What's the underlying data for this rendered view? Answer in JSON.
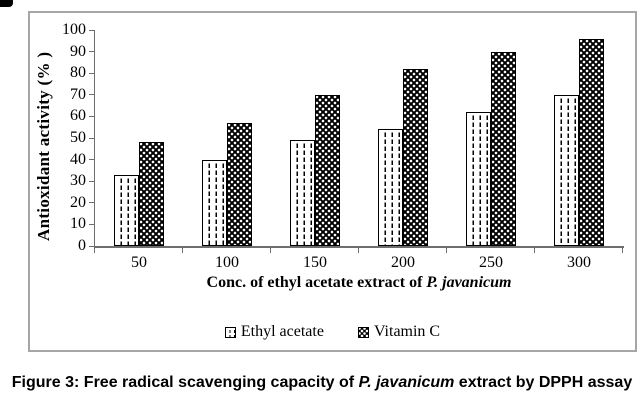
{
  "figure": {
    "caption_prefix": "Figure 3: Free radical scavenging capacity of ",
    "caption_italic": "P. javanicum",
    "caption_suffix": " extract by DPPH assay"
  },
  "chart_data": {
    "type": "bar",
    "title": "",
    "categories": [
      "50",
      "100",
      "150",
      "200",
      "250",
      "300"
    ],
    "series": [
      {
        "name": "Ethyl acetate",
        "values": [
          33,
          40,
          49,
          54,
          62,
          70
        ],
        "pattern": "dashed-vertical-lines-on-white"
      },
      {
        "name": "Vitamin C",
        "values": [
          48,
          57,
          70,
          82,
          90,
          96
        ],
        "pattern": "white-dots-on-black"
      }
    ],
    "xlabel_prefix": "Conc. of ethyl acetate extract of ",
    "xlabel_italic": "P. javanicum",
    "ylabel": "Antioxidant activity (% )",
    "ylim": [
      0,
      100
    ],
    "yticks": [
      0,
      10,
      20,
      30,
      40,
      50,
      60,
      70,
      80,
      90,
      100
    ],
    "grid": false,
    "legend_position": "bottom"
  },
  "colors": {
    "bar_fill_dark": "#000000",
    "bar_fill_light": "#ffffff",
    "axis": "#6e6e6e",
    "chart_border": "#a6a6a6",
    "text": "#000000"
  }
}
